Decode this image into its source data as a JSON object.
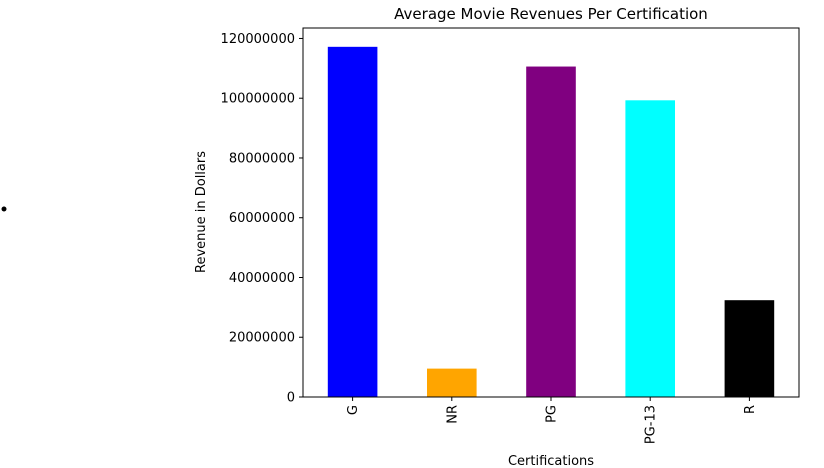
{
  "chart_data": {
    "type": "bar",
    "title": "Average Movie Revenues Per Certification",
    "xlabel": "Certifications",
    "ylabel": "Revenue in Dollars",
    "categories": [
      "G",
      "NR",
      "PG",
      "PG-13",
      "R"
    ],
    "values": [
      117200000,
      9500000,
      110600000,
      99300000,
      32400000
    ],
    "colors": [
      "#0000ff",
      "#ffa500",
      "#800080",
      "#00ffff",
      "#000000"
    ],
    "ylim": [
      0,
      123500000
    ],
    "yticks": [
      0,
      20000000,
      40000000,
      60000000,
      80000000,
      100000000,
      120000000
    ],
    "ytick_labels": [
      "0",
      "20000000",
      "40000000",
      "60000000",
      "80000000",
      "100000000",
      "120000000"
    ],
    "grid": false,
    "legend": "none"
  }
}
